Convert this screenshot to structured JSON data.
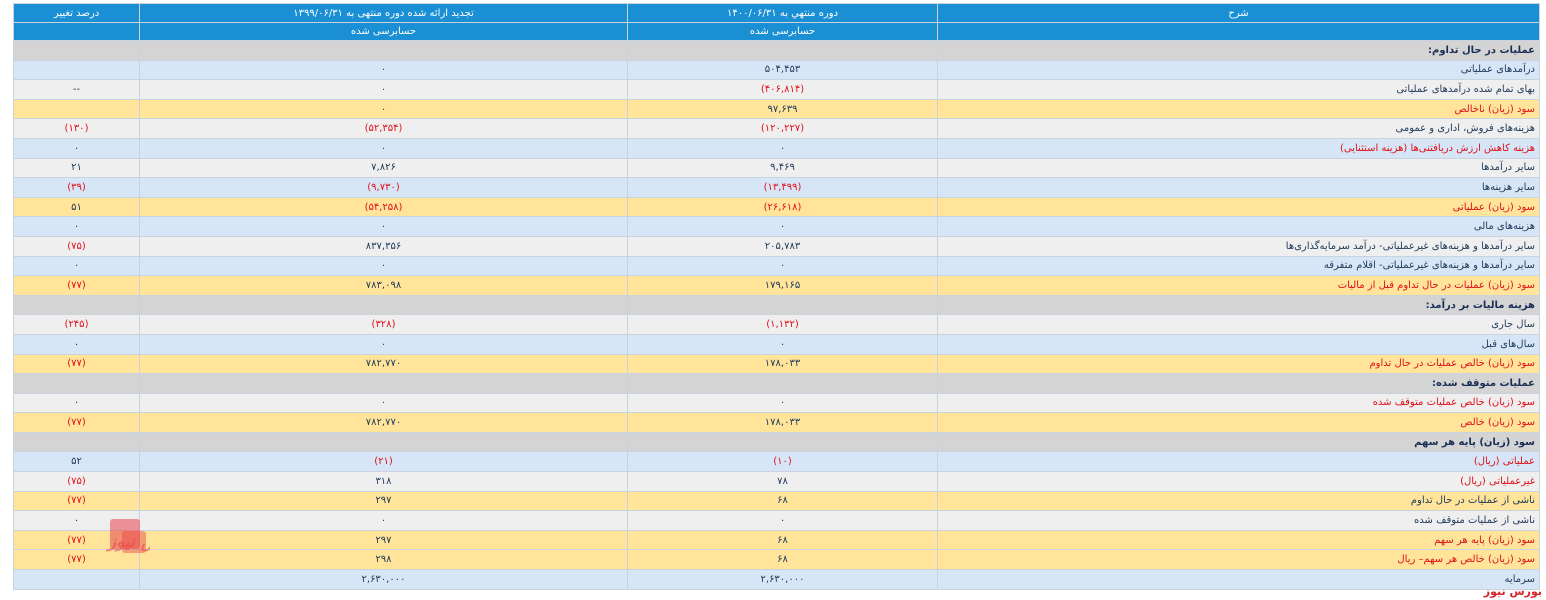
{
  "header": {
    "col_desc": "شرح",
    "col_current": "دوره منتهي به ۱۴۰۰/۰۶/۳۱",
    "col_previous": "تجدید ارائه شده دوره منتهی به ۱۳۹۹/۰۶/۳۱",
    "col_change": "درصد تغییر",
    "audit_current": "حسابرسی شده",
    "audit_previous": "حسابرسی شده"
  },
  "rows": [
    {
      "type": "section",
      "desc": "عملیات در حال تداوم:"
    },
    {
      "type": "blue",
      "desc": "درآمدهای عملیاتی",
      "current": "۵۰۴,۴۵۳",
      "previous": "۰",
      "change": ""
    },
    {
      "type": "gray",
      "desc": "بهای تمام شده درآمدهای عملیاتی",
      "current": "(۴۰۶,۸۱۴)",
      "previous": "۰",
      "change": "--"
    },
    {
      "type": "yellow",
      "desc": "سود (زیان) ناخالص",
      "current": "۹۷,۶۳۹",
      "previous": "۰",
      "change": ""
    },
    {
      "type": "gray",
      "desc": "هزینه‌های فروش، اداری و عمومی",
      "current": "(۱۲۰,۲۲۷)",
      "previous": "(۵۲,۳۵۴)",
      "change": "(۱۳۰)"
    },
    {
      "type": "blue",
      "desc": "هزینه کاهش ارزش دریافتنی‌ها (هزینه استثنایی)",
      "current": "۰",
      "previous": "۰",
      "change": "۰"
    },
    {
      "type": "gray",
      "desc": "سایر درآمدها",
      "current": "۹,۴۶۹",
      "previous": "۷,۸۲۶",
      "change": "۲۱"
    },
    {
      "type": "blue",
      "desc": "سایر هزینه‌ها",
      "current": "(۱۳,۴۹۹)",
      "previous": "(۹,۷۳۰)",
      "change": "(۳۹)"
    },
    {
      "type": "yellow",
      "desc": "سود (زیان) عملیاتی",
      "current": "(۲۶,۶۱۸)",
      "previous": "(۵۴,۲۵۸)",
      "change": "۵۱"
    },
    {
      "type": "blue",
      "desc": "هزینه‌های مالی",
      "current": "۰",
      "previous": "۰",
      "change": "۰"
    },
    {
      "type": "gray",
      "desc": "سایر درآمدها و هزینه‌های غیرعملیاتی- درآمد سرمایه‌گذاری‌ها",
      "current": "۲۰۵,۷۸۳",
      "previous": "۸۳۷,۳۵۶",
      "change": "(۷۵)"
    },
    {
      "type": "blue",
      "desc": "سایر درآمدها و هزینه‌های غیرعملیاتی- اقلام متفرقه",
      "current": "۰",
      "previous": "۰",
      "change": "۰"
    },
    {
      "type": "yellow",
      "desc": "سود (زیان) عملیات در حال تداوم قبل از مالیات",
      "current": "۱۷۹,۱۶۵",
      "previous": "۷۸۳,۰۹۸",
      "change": "(۷۷)"
    },
    {
      "type": "section",
      "desc": "هزینه مالیات بر درآمد:"
    },
    {
      "type": "gray",
      "desc": "سال جاری",
      "current": "(۱,۱۳۲)",
      "previous": "(۳۲۸)",
      "change": "(۲۴۵)"
    },
    {
      "type": "blue",
      "desc": "سال‌های قبل",
      "current": "۰",
      "previous": "۰",
      "change": "۰"
    },
    {
      "type": "yellow",
      "desc": "سود (زیان) خالص عملیات در حال تداوم",
      "current": "۱۷۸,۰۳۳",
      "previous": "۷۸۲,۷۷۰",
      "change": "(۷۷)"
    },
    {
      "type": "section",
      "desc": "عملیات متوقف شده:"
    },
    {
      "type": "gray",
      "desc": "سود (زیان) خالص عملیات متوقف شده",
      "current": "۰",
      "previous": "۰",
      "change": "۰"
    },
    {
      "type": "yellow",
      "desc": "سود (زیان) خالص",
      "current": "۱۷۸,۰۳۳",
      "previous": "۷۸۲,۷۷۰",
      "change": "(۷۷)"
    },
    {
      "type": "section",
      "desc": "سود (زیان) پایه هر سهم"
    },
    {
      "type": "blue",
      "desc": "عملیاتی (ریال)",
      "current": "(۱۰)",
      "previous": "(۲۱)",
      "change": "۵۲"
    },
    {
      "type": "gray",
      "desc": "غیرعملیاتی (ریال)",
      "current": "۷۸",
      "previous": "۳۱۸",
      "change": "(۷۵)"
    },
    {
      "type": "yellow",
      "desc": "ناشی از عملیات در حال تداوم",
      "current": "۶۸",
      "previous": "۲۹۷",
      "change": "(۷۷)"
    },
    {
      "type": "gray",
      "desc": "ناشی از عملیات متوقف شده",
      "current": "۰",
      "previous": "۰",
      "change": "۰"
    },
    {
      "type": "yellow",
      "desc": "سود (زیان) پایه هر سهم",
      "current": "۶۸",
      "previous": "۲۹۷",
      "change": "(۷۷)"
    },
    {
      "type": "yellow",
      "desc": "سود (زیان) خالص هر سهم– ریال",
      "current": "۶۸",
      "previous": "۲۹۸",
      "change": "(۷۷)"
    },
    {
      "type": "blue",
      "desc": "سرمایه",
      "current": "۲,۶۳۰,۰۰۰",
      "previous": "۲,۶۳۰,۰۰۰",
      "change": ""
    }
  ],
  "watermark": {
    "text": "بورس نیوز",
    "icon": "bourse-news-logo-icon",
    "color": "#d2232a"
  },
  "brand": {
    "text": "بورس نیوز"
  }
}
